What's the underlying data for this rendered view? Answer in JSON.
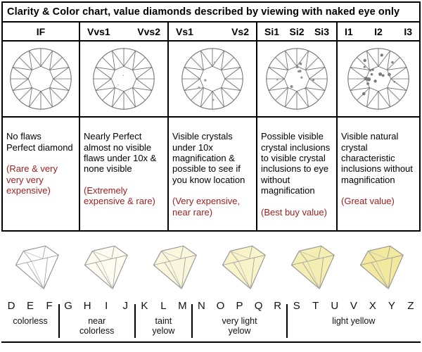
{
  "title": "Clarity & Color chart, value diamonds described by viewing with naked eye only",
  "note_color": "#9e1d1d",
  "clarity": {
    "columns": [
      {
        "grades": [
          "IF"
        ],
        "desc": "No flaws\nPerfect diamond",
        "note": "(Rare & very very very expensive)",
        "inclusion_count": 0,
        "inclusion_color": "#b5b5b5",
        "speck_size": 1.0
      },
      {
        "grades": [
          "Vvs1",
          "Vvs2"
        ],
        "desc": "Nearly Perfect almost no visible flaws under 10x & none visible",
        "note": "(Extremely expensive & rare)",
        "inclusion_count": 2,
        "inclusion_color": "#b0b0b0",
        "speck_size": 1.1
      },
      {
        "grades": [
          "Vs1",
          "Vs2"
        ],
        "desc": "Visible crystals under 10x magnification & possible to see if you know location",
        "note": "(Very expensive, near rare)",
        "inclusion_count": 5,
        "inclusion_color": "#a0a0a0",
        "speck_size": 1.3
      },
      {
        "grades": [
          "Si1",
          "Si2",
          "Si3"
        ],
        "desc": "Possible visible crystal inclusions to visible crystal inclusions to eye without magnification",
        "note": "(Best buy value)",
        "inclusion_count": 9,
        "inclusion_color": "#8c8c8c",
        "speck_size": 1.6
      },
      {
        "grades": [
          "I1",
          "I2",
          "I3"
        ],
        "desc": "Visible natural crystal characteristic inclusions without magnification",
        "note": "(Great value)",
        "inclusion_count": 16,
        "inclusion_color": "#7a7a7a",
        "speck_size": 2.0
      }
    ]
  },
  "colors": {
    "letters": [
      "D",
      "E",
      "F",
      "G",
      "H",
      "I",
      "J",
      "K",
      "L",
      "M",
      "N",
      "O",
      "P",
      "Q",
      "R",
      "S",
      "T",
      "U",
      "V",
      "X",
      "Y",
      "Z"
    ],
    "groups": [
      {
        "label": "colorless",
        "start": 0,
        "end": 2
      },
      {
        "label": "near colorless",
        "start": 3,
        "end": 6
      },
      {
        "label": "taint yelow",
        "start": 7,
        "end": 9
      },
      {
        "label": "very light yelow",
        "start": 10,
        "end": 14
      },
      {
        "label": "light yellow",
        "start": 15,
        "end": 21
      }
    ],
    "diamond_tints": [
      "#ffffff",
      "#fefcf0",
      "#fbf7dc",
      "#f8f3c8",
      "#f5eeb2",
      "#f2e99e"
    ]
  }
}
